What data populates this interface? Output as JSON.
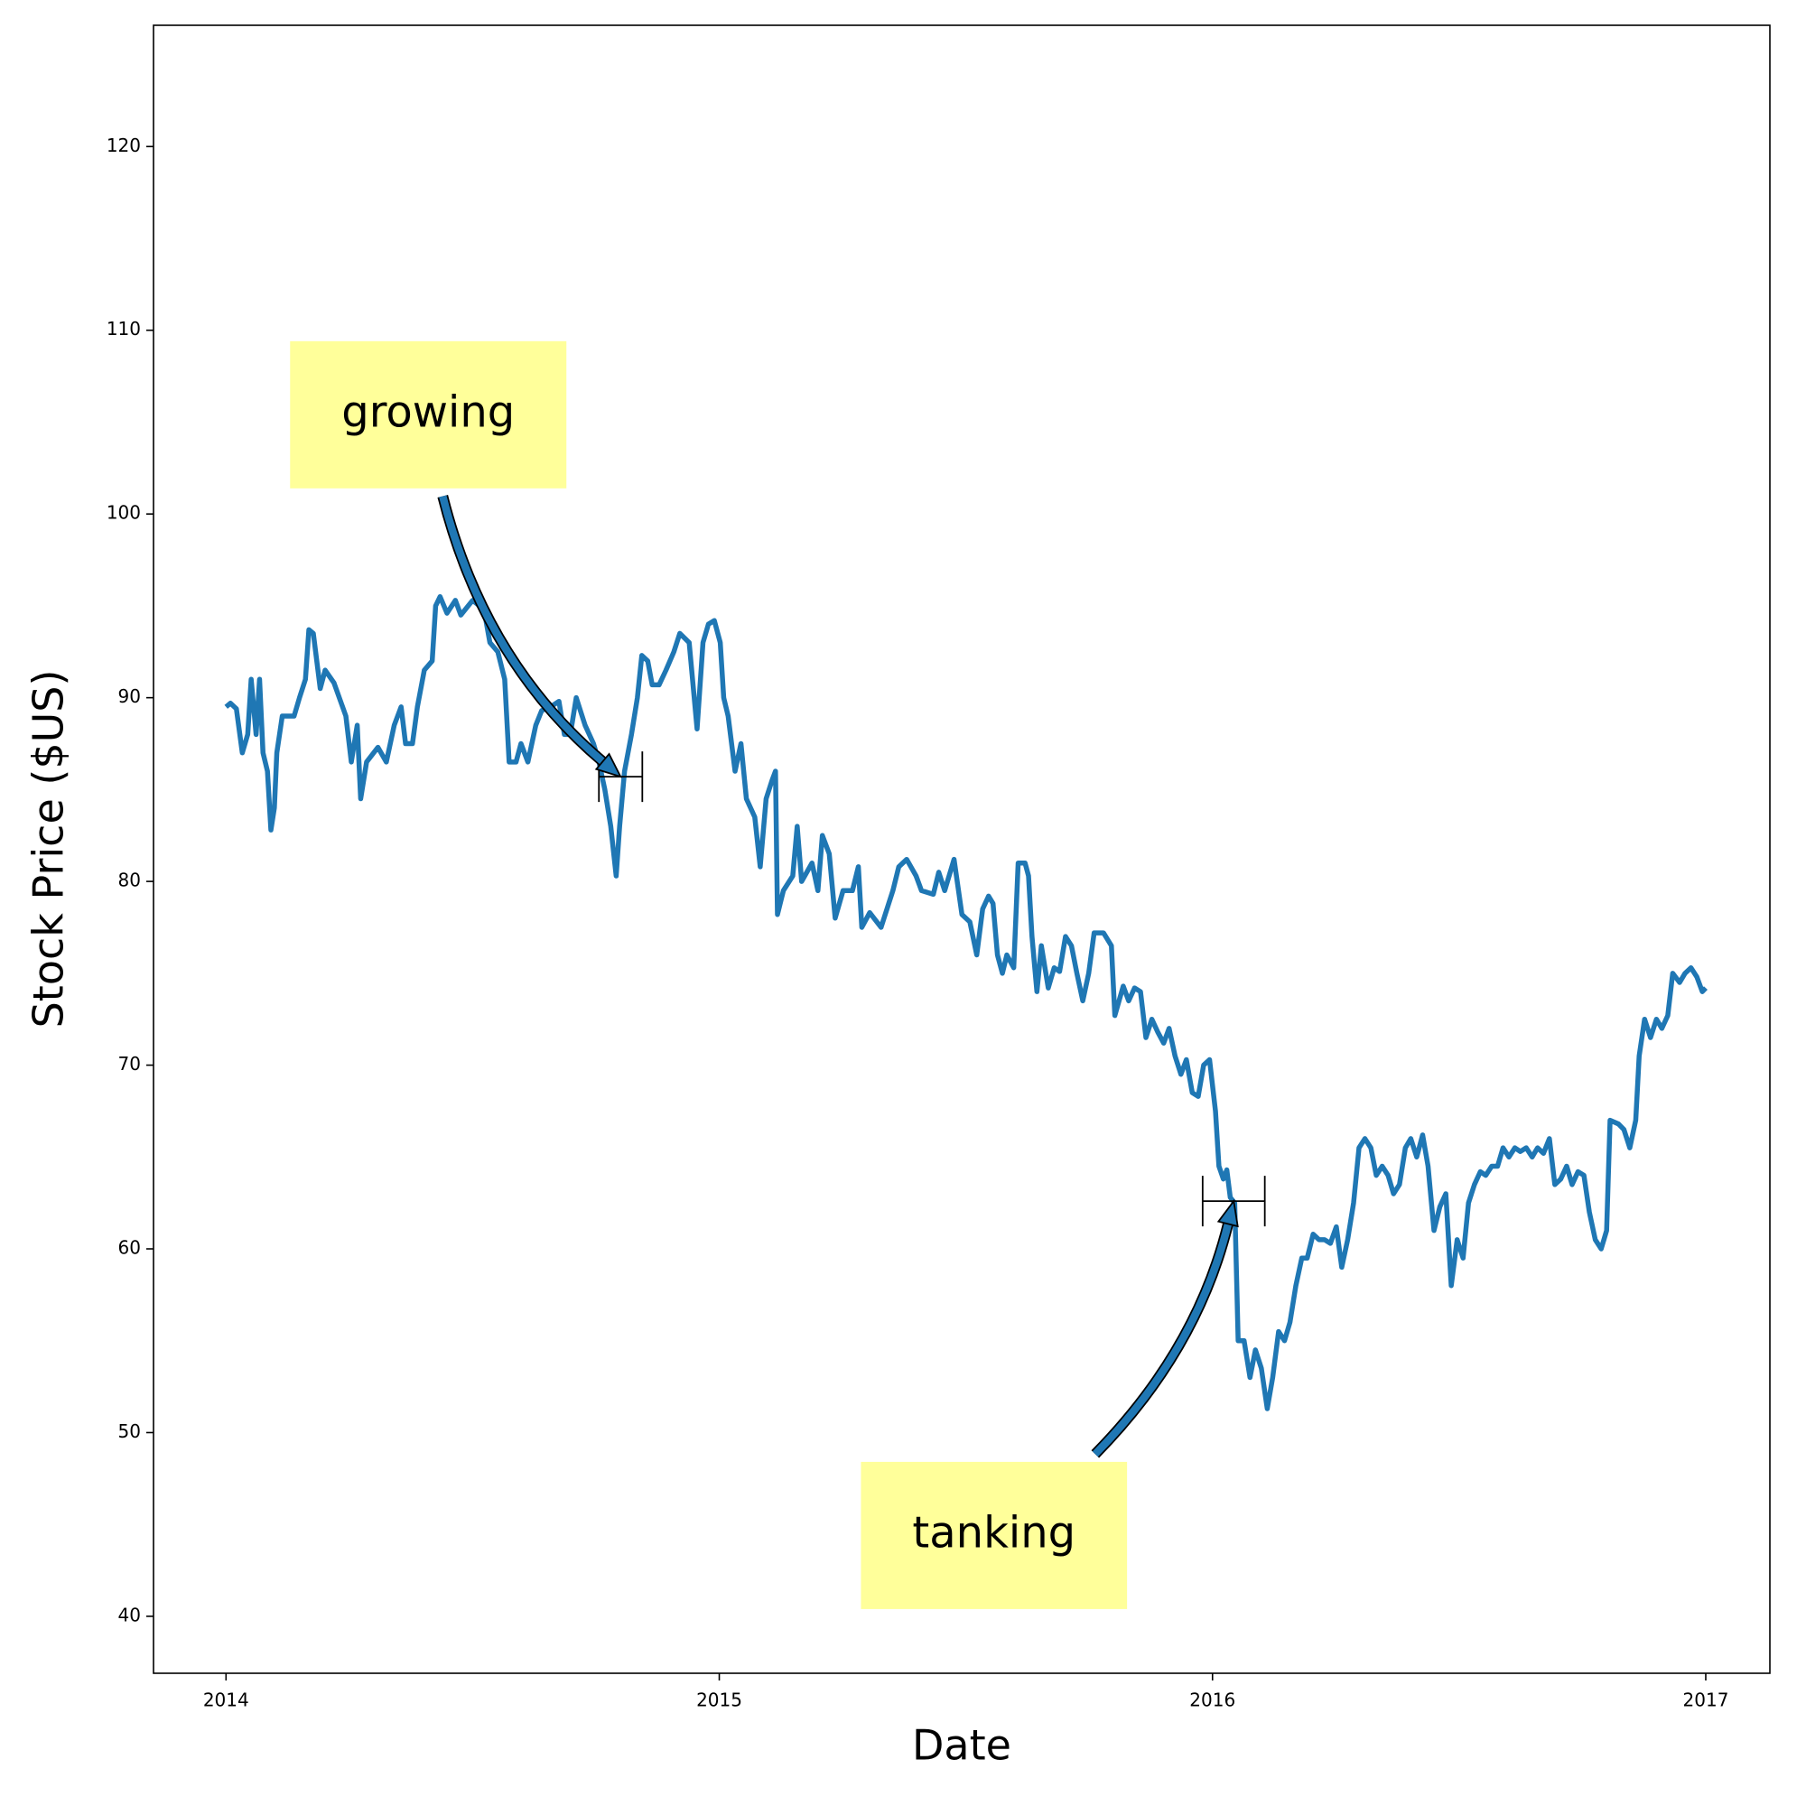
{
  "chart_data": {
    "type": "line",
    "xlabel": "Date",
    "ylabel": "Stock Price ($US)",
    "xlim": [
      2013.853,
      2017.13
    ],
    "ylim": [
      36.9,
      126.6
    ],
    "xticks": [
      2014,
      2015,
      2016,
      2017
    ],
    "yticks": [
      40,
      50,
      60,
      70,
      80,
      90,
      100,
      110,
      120
    ],
    "x": [
      2014.0,
      2014.009,
      2014.021,
      2014.033,
      2014.044,
      2014.051,
      2014.061,
      2014.068,
      2014.075,
      2014.084,
      2014.091,
      2014.098,
      2014.103,
      2014.114,
      2014.138,
      2014.149,
      2014.161,
      2014.168,
      2014.177,
      2014.191,
      2014.201,
      2014.219,
      2014.243,
      2014.254,
      2014.266,
      2014.273,
      2014.285,
      2014.308,
      2014.325,
      2014.341,
      2014.355,
      2014.364,
      2014.378,
      2014.388,
      2014.402,
      2014.418,
      2014.425,
      2014.434,
      2014.448,
      2014.465,
      2014.476,
      2014.5,
      2014.523,
      2014.535,
      2014.551,
      2014.565,
      2014.574,
      2014.588,
      2014.598,
      2014.612,
      2014.628,
      2014.64,
      2014.658,
      2014.675,
      2014.686,
      2014.698,
      2014.71,
      2014.728,
      2014.745,
      2014.756,
      2014.768,
      2014.78,
      2014.791,
      2014.798,
      2014.808,
      2014.822,
      2014.834,
      2014.843,
      2014.855,
      2014.864,
      2014.878,
      2014.892,
      2014.908,
      2014.92,
      2014.939,
      2014.955,
      2014.967,
      2014.978,
      2014.99,
      2015.002,
      2015.009,
      2015.018,
      2015.032,
      2015.044,
      2015.055,
      2015.072,
      2015.083,
      2015.095,
      2015.107,
      2015.114,
      2015.118,
      2015.13,
      2015.149,
      2015.158,
      2015.167,
      2015.188,
      2015.2,
      2015.209,
      2015.223,
      2015.235,
      2015.251,
      2015.27,
      2015.282,
      2015.289,
      2015.305,
      2015.328,
      2015.34,
      2015.352,
      2015.364,
      2015.38,
      2015.399,
      2015.41,
      2015.434,
      2015.445,
      2015.457,
      2015.476,
      2015.492,
      2015.508,
      2015.522,
      2015.534,
      2015.546,
      2015.555,
      2015.564,
      2015.574,
      2015.583,
      2015.597,
      2015.606,
      2015.62,
      2015.627,
      2015.634,
      2015.644,
      2015.653,
      2015.667,
      2015.679,
      2015.69,
      2015.702,
      2015.714,
      2015.725,
      2015.737,
      2015.749,
      2015.76,
      2015.779,
      2015.795,
      2015.802,
      2015.819,
      2015.83,
      2015.842,
      2015.854,
      2015.865,
      2015.877,
      2015.889,
      2015.901,
      2015.912,
      2015.924,
      2015.936,
      2015.947,
      2015.959,
      2015.971,
      2015.982,
      2015.994,
      2016.006,
      2016.013,
      2016.022,
      2016.029,
      2016.036,
      2016.045,
      2016.052,
      2016.064,
      2016.076,
      2016.087,
      2016.099,
      2016.111,
      2016.122,
      2016.134,
      2016.146,
      2016.157,
      2016.169,
      2016.181,
      2016.192,
      2016.204,
      2016.216,
      2016.227,
      2016.239,
      2016.251,
      2016.262,
      2016.274,
      2016.286,
      2016.297,
      2016.309,
      2016.321,
      2016.332,
      2016.344,
      2016.356,
      2016.367,
      2016.379,
      2016.391,
      2016.402,
      2016.414,
      2016.426,
      2016.437,
      2016.449,
      2016.461,
      2016.473,
      2016.484,
      2016.496,
      2016.508,
      2016.519,
      2016.531,
      2016.543,
      2016.554,
      2016.566,
      2016.578,
      2016.589,
      2016.601,
      2016.613,
      2016.624,
      2016.636,
      2016.648,
      2016.659,
      2016.671,
      2016.683,
      2016.694,
      2016.706,
      2016.718,
      2016.729,
      2016.741,
      2016.753,
      2016.764,
      2016.776,
      2016.788,
      2016.799,
      2016.806,
      2016.823,
      2016.834,
      2016.846,
      2016.858,
      2016.865,
      2016.876,
      2016.888,
      2016.9,
      2016.911,
      2016.923,
      2016.933,
      2016.947,
      2016.958,
      2016.97,
      2016.982,
      2016.993,
      2017.0
    ],
    "series": [
      {
        "color": "#1f77b4",
        "values": [
          89.5,
          89.7,
          89.4,
          87,
          88,
          91,
          88,
          91,
          87,
          86,
          82.8,
          84,
          87,
          89,
          89,
          90,
          91,
          93.7,
          93.5,
          90.5,
          91.5,
          90.8,
          89,
          86.5,
          88.5,
          84.5,
          86.5,
          87.3,
          86.5,
          88.5,
          89.5,
          87.5,
          87.5,
          89.5,
          91.5,
          92,
          95,
          95.5,
          94.6,
          95.3,
          94.5,
          95.3,
          94.8,
          93,
          92.5,
          91,
          86.5,
          86.5,
          87.5,
          86.5,
          88.5,
          89.3,
          89.5,
          89.8,
          88,
          88,
          90,
          88.5,
          87.5,
          86.5,
          85,
          83,
          80.3,
          83,
          86,
          88,
          90,
          92.3,
          92,
          90.7,
          90.7,
          91.5,
          92.5,
          93.5,
          93,
          88.3,
          93,
          94,
          94.2,
          93,
          90,
          89,
          86,
          87.5,
          84.5,
          83.5,
          80.8,
          84.5,
          85.5,
          86,
          78.2,
          79.5,
          80.3,
          83,
          80,
          81,
          79.5,
          82.5,
          81.5,
          78,
          79.5,
          79.5,
          80.8,
          77.5,
          78.3,
          77.5,
          78.5,
          79.5,
          80.8,
          81.2,
          80.3,
          79.5,
          79.3,
          80.5,
          79.5,
          81.2,
          78.2,
          77.8,
          76,
          78.5,
          79.2,
          78.8,
          76,
          75,
          76,
          75.3,
          81,
          81,
          80.3,
          77,
          74,
          76.5,
          74.2,
          75.3,
          75.1,
          77,
          76.5,
          75,
          73.5,
          75,
          77.2,
          77.2,
          76.5,
          72.7,
          74.3,
          73.5,
          74.2,
          74,
          71.5,
          72.5,
          71.8,
          71.2,
          72,
          70.5,
          69.5,
          70.3,
          68.5,
          68.3,
          70,
          70.3,
          67.5,
          64.5,
          63.8,
          64.3,
          62.8,
          62.5,
          55,
          55,
          53,
          54.5,
          53.5,
          51.3,
          53,
          55.5,
          55,
          56,
          58,
          59.5,
          59.5,
          60.8,
          60.5,
          60.5,
          60.3,
          61.2,
          59,
          60.5,
          62.5,
          65.5,
          66,
          65.5,
          64,
          64.5,
          64,
          63,
          63.5,
          65.5,
          66,
          65,
          66.2,
          64.5,
          61,
          62.3,
          63,
          58,
          60.5,
          59.5,
          62.5,
          63.5,
          64.2,
          64,
          64.5,
          64.5,
          65.5,
          65,
          65.5,
          65.3,
          65.5,
          65,
          65.5,
          65.2,
          66,
          63.5,
          63.8,
          64.5,
          63.5,
          64.2,
          64,
          62,
          60.5,
          60,
          61,
          67,
          66.8,
          66.5,
          65.5,
          67,
          70.5,
          72.5,
          71.5,
          72.5,
          72,
          72.7,
          75,
          74.5,
          75,
          75.3,
          74.8,
          74,
          74.2
        ]
      }
    ],
    "box_color": "#ffff9a",
    "arrow_color": "#1f77b4",
    "annotations": [
      {
        "text": "growing",
        "x": 2014.41,
        "y": 105.4,
        "xy": [
          2014.8,
          85.7
        ],
        "xerr": 0.044
      },
      {
        "text": "tanking",
        "x": 2015.557,
        "y": 44.4,
        "xy": [
          2016.043,
          62.6
        ],
        "xerr": 0.063
      }
    ]
  }
}
